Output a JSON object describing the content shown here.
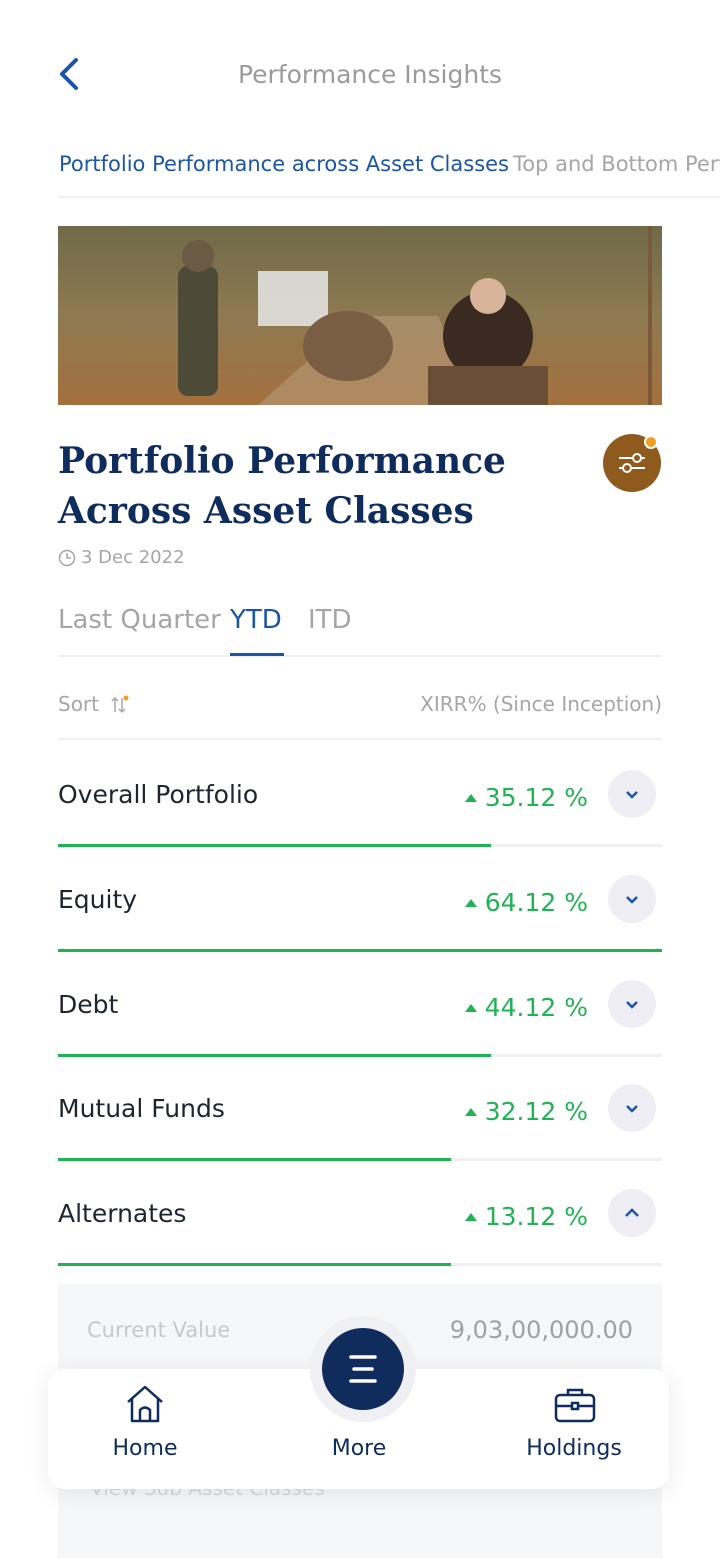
{
  "header": {
    "title": "Performance Insights"
  },
  "tabs": [
    "Portfolio Performance across Asset Classes",
    "Top and Bottom Perf"
  ],
  "article": {
    "title": "Portfolio Performance Across Asset Classes",
    "date": "3 Dec 2022"
  },
  "periods": [
    "Last Quarter",
    "YTD",
    "ITD"
  ],
  "table": {
    "sort": "Sort",
    "column": "XIRR% (Since Inception)",
    "rows": [
      {
        "name": "Overall Portfolio",
        "value": "35.12 %"
      },
      {
        "name": "Equity",
        "value": "64.12 %"
      },
      {
        "name": "Debt",
        "value": "44.12 %"
      },
      {
        "name": "Mutual Funds",
        "value": "32.12 %"
      },
      {
        "name": "Alternates",
        "value": "13.12 %"
      }
    ]
  },
  "detail": {
    "label": "Current Value",
    "value": "9,03,00,000.00",
    "link": "View Sub Asset Classes"
  },
  "nav": [
    "Home",
    "More",
    "Holdings"
  ]
}
